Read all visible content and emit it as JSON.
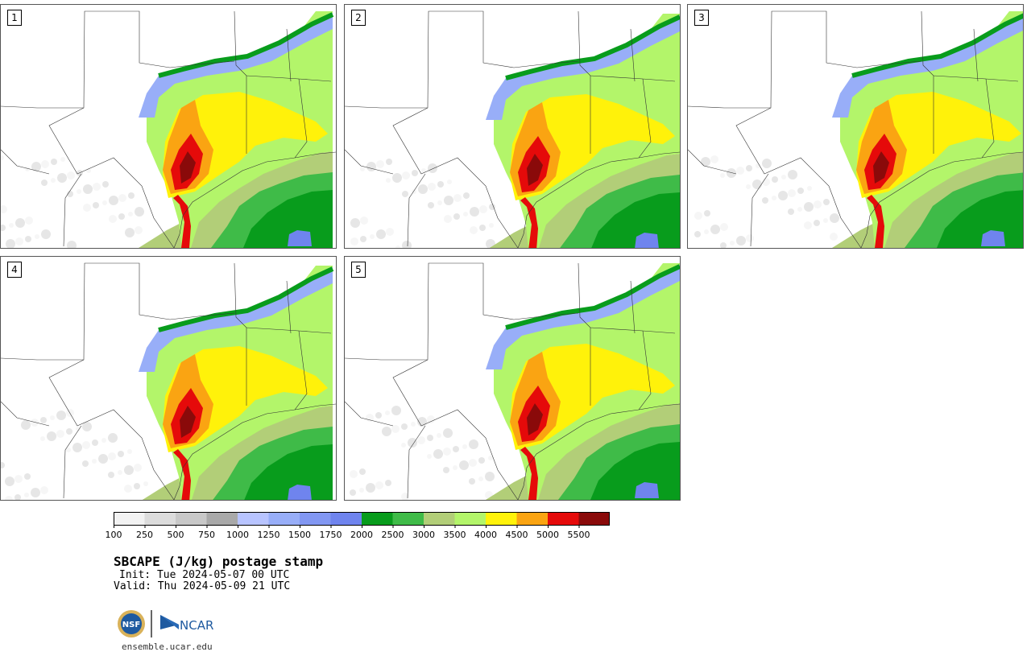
{
  "figure": {
    "title": "SBCAPE (J/kg) postage stamp",
    "init": "Init: Tue 2024-05-07 00 UTC",
    "valid": "Valid: Thu 2024-05-09 21 UTC",
    "website": "ensemble.ucar.edu"
  },
  "panels": [
    {
      "label": "1"
    },
    {
      "label": "2"
    },
    {
      "label": "3"
    },
    {
      "label": "4"
    },
    {
      "label": "5"
    }
  ],
  "colorbar": {
    "units": "J/kg",
    "ticks": [
      "100",
      "250",
      "500",
      "750",
      "1000",
      "1250",
      "1500",
      "1750",
      "2000",
      "2500",
      "3000",
      "3500",
      "4000",
      "4500",
      "5000",
      "5500"
    ],
    "colors": [
      "#f2f2f2",
      "#dcdcdc",
      "#c8c8c8",
      "#a9a9a9",
      "#b8c4ff",
      "#98aef8",
      "#8297f2",
      "#6f84ee",
      "#089c1c",
      "#3fbb48",
      "#b2ce78",
      "#b3f56a",
      "#fff20a",
      "#faa412",
      "#e50a0a",
      "#8a0a0a"
    ]
  },
  "logos": {
    "nsf": "NSF",
    "ncar": "NCAR"
  }
}
